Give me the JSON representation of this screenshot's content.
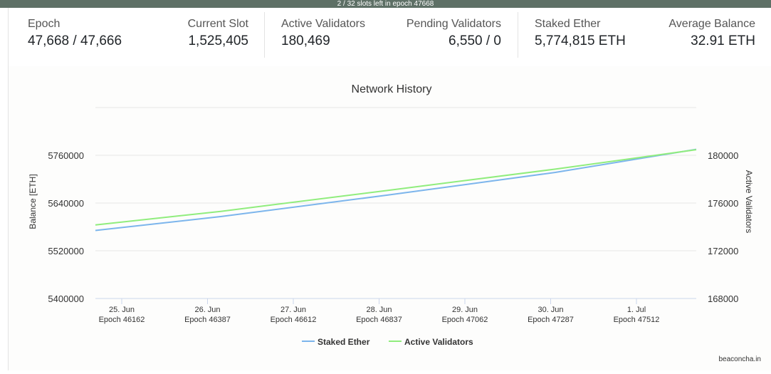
{
  "banner": "2 / 32 slots left in epoch 47668",
  "stats": {
    "epoch": {
      "label": "Epoch",
      "value": "47,668 / 47,666"
    },
    "current_slot": {
      "label": "Current Slot",
      "value": "1,525,405"
    },
    "active_validators": {
      "label": "Active Validators",
      "value": "180,469"
    },
    "pending_validators": {
      "label": "Pending Validators",
      "value": "6,550 / 0"
    },
    "staked_ether": {
      "label": "Staked Ether",
      "value": "5,774,815 ETH"
    },
    "average_balance": {
      "label": "Average Balance",
      "value": "32.91 ETH"
    }
  },
  "credit": "beaconcha.in",
  "colors": {
    "staked": "#7cb5ec",
    "active": "#90ed7d"
  },
  "chart_data": {
    "type": "line",
    "title": "Network History",
    "ylabel_left": "Balance [ETH]",
    "ylabel_right": "Active Validators",
    "x_categories": [
      {
        "date": "25. Jun",
        "epoch": "Epoch 46162"
      },
      {
        "date": "26. Jun",
        "epoch": "Epoch 46387"
      },
      {
        "date": "27. Jun",
        "epoch": "Epoch 46612"
      },
      {
        "date": "28. Jun",
        "epoch": "Epoch 46837"
      },
      {
        "date": "29. Jun",
        "epoch": "Epoch 47062"
      },
      {
        "date": "30. Jun",
        "epoch": "Epoch 47287"
      },
      {
        "date": "1. Jul",
        "epoch": "Epoch 47512"
      }
    ],
    "y_left_ticks": [
      5400000,
      5520000,
      5640000,
      5760000
    ],
    "y_right_ticks": [
      168000,
      172000,
      176000,
      180000
    ],
    "y_left_range": [
      5400000,
      5880000
    ],
    "y_right_range": [
      168000,
      184000
    ],
    "x_range": [
      46050,
      47666
    ],
    "series": [
      {
        "name": "Staked Ether",
        "axis": "left",
        "points": [
          [
            46050,
            5571000
          ],
          [
            46387,
            5606000
          ],
          [
            46837,
            5660000
          ],
          [
            47287,
            5717000
          ],
          [
            47666,
            5775000
          ]
        ]
      },
      {
        "name": "Active Validators",
        "axis": "right",
        "points": [
          [
            46050,
            174160
          ],
          [
            46387,
            175300
          ],
          [
            46837,
            177060
          ],
          [
            47287,
            178840
          ],
          [
            47666,
            180470
          ]
        ]
      }
    ]
  }
}
